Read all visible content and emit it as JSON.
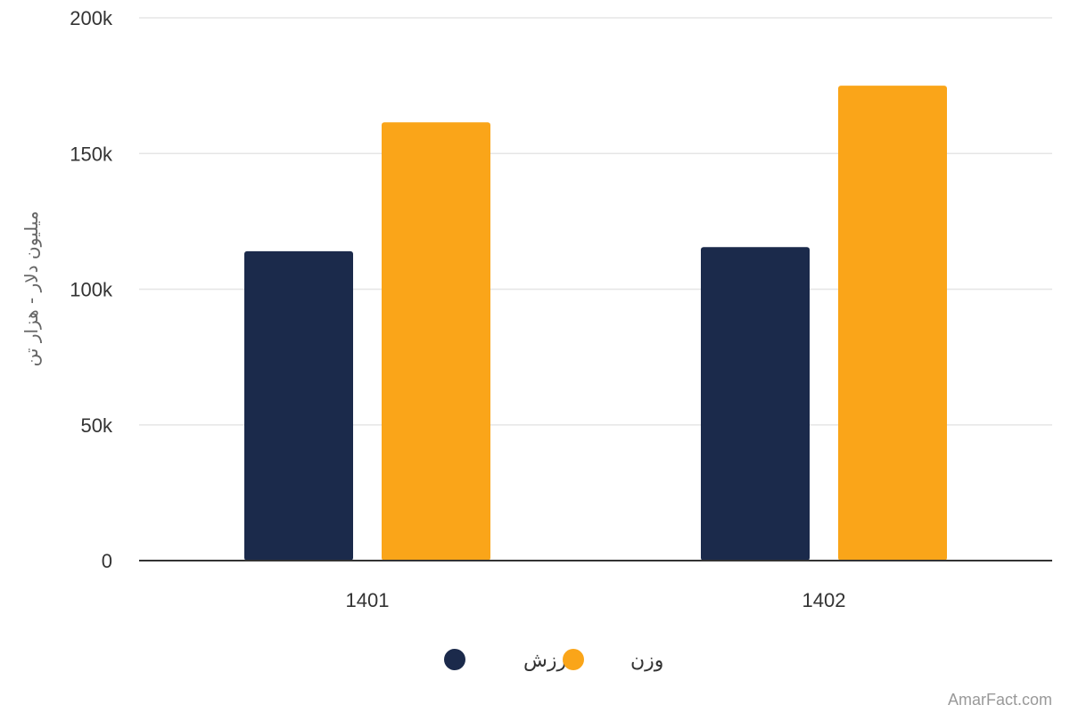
{
  "chart_data": {
    "type": "bar",
    "categories": [
      "1401",
      "1402"
    ],
    "series": [
      {
        "name": "ارزش",
        "color": "#1b2a4b",
        "values": [
          114000,
          115500
        ]
      },
      {
        "name": "وزن",
        "color": "#faa519",
        "values": [
          161500,
          175000
        ]
      }
    ],
    "ylabel": "میلیون دلار - هزار تن",
    "ylim": [
      0,
      200000
    ],
    "yticks": [
      0,
      50000,
      100000,
      150000,
      200000
    ],
    "ytick_labels": [
      "0",
      "50k",
      "100k",
      "150k",
      "200k"
    ],
    "grid": true,
    "legend_position": "bottom-center"
  },
  "credit": "AmarFact.com"
}
